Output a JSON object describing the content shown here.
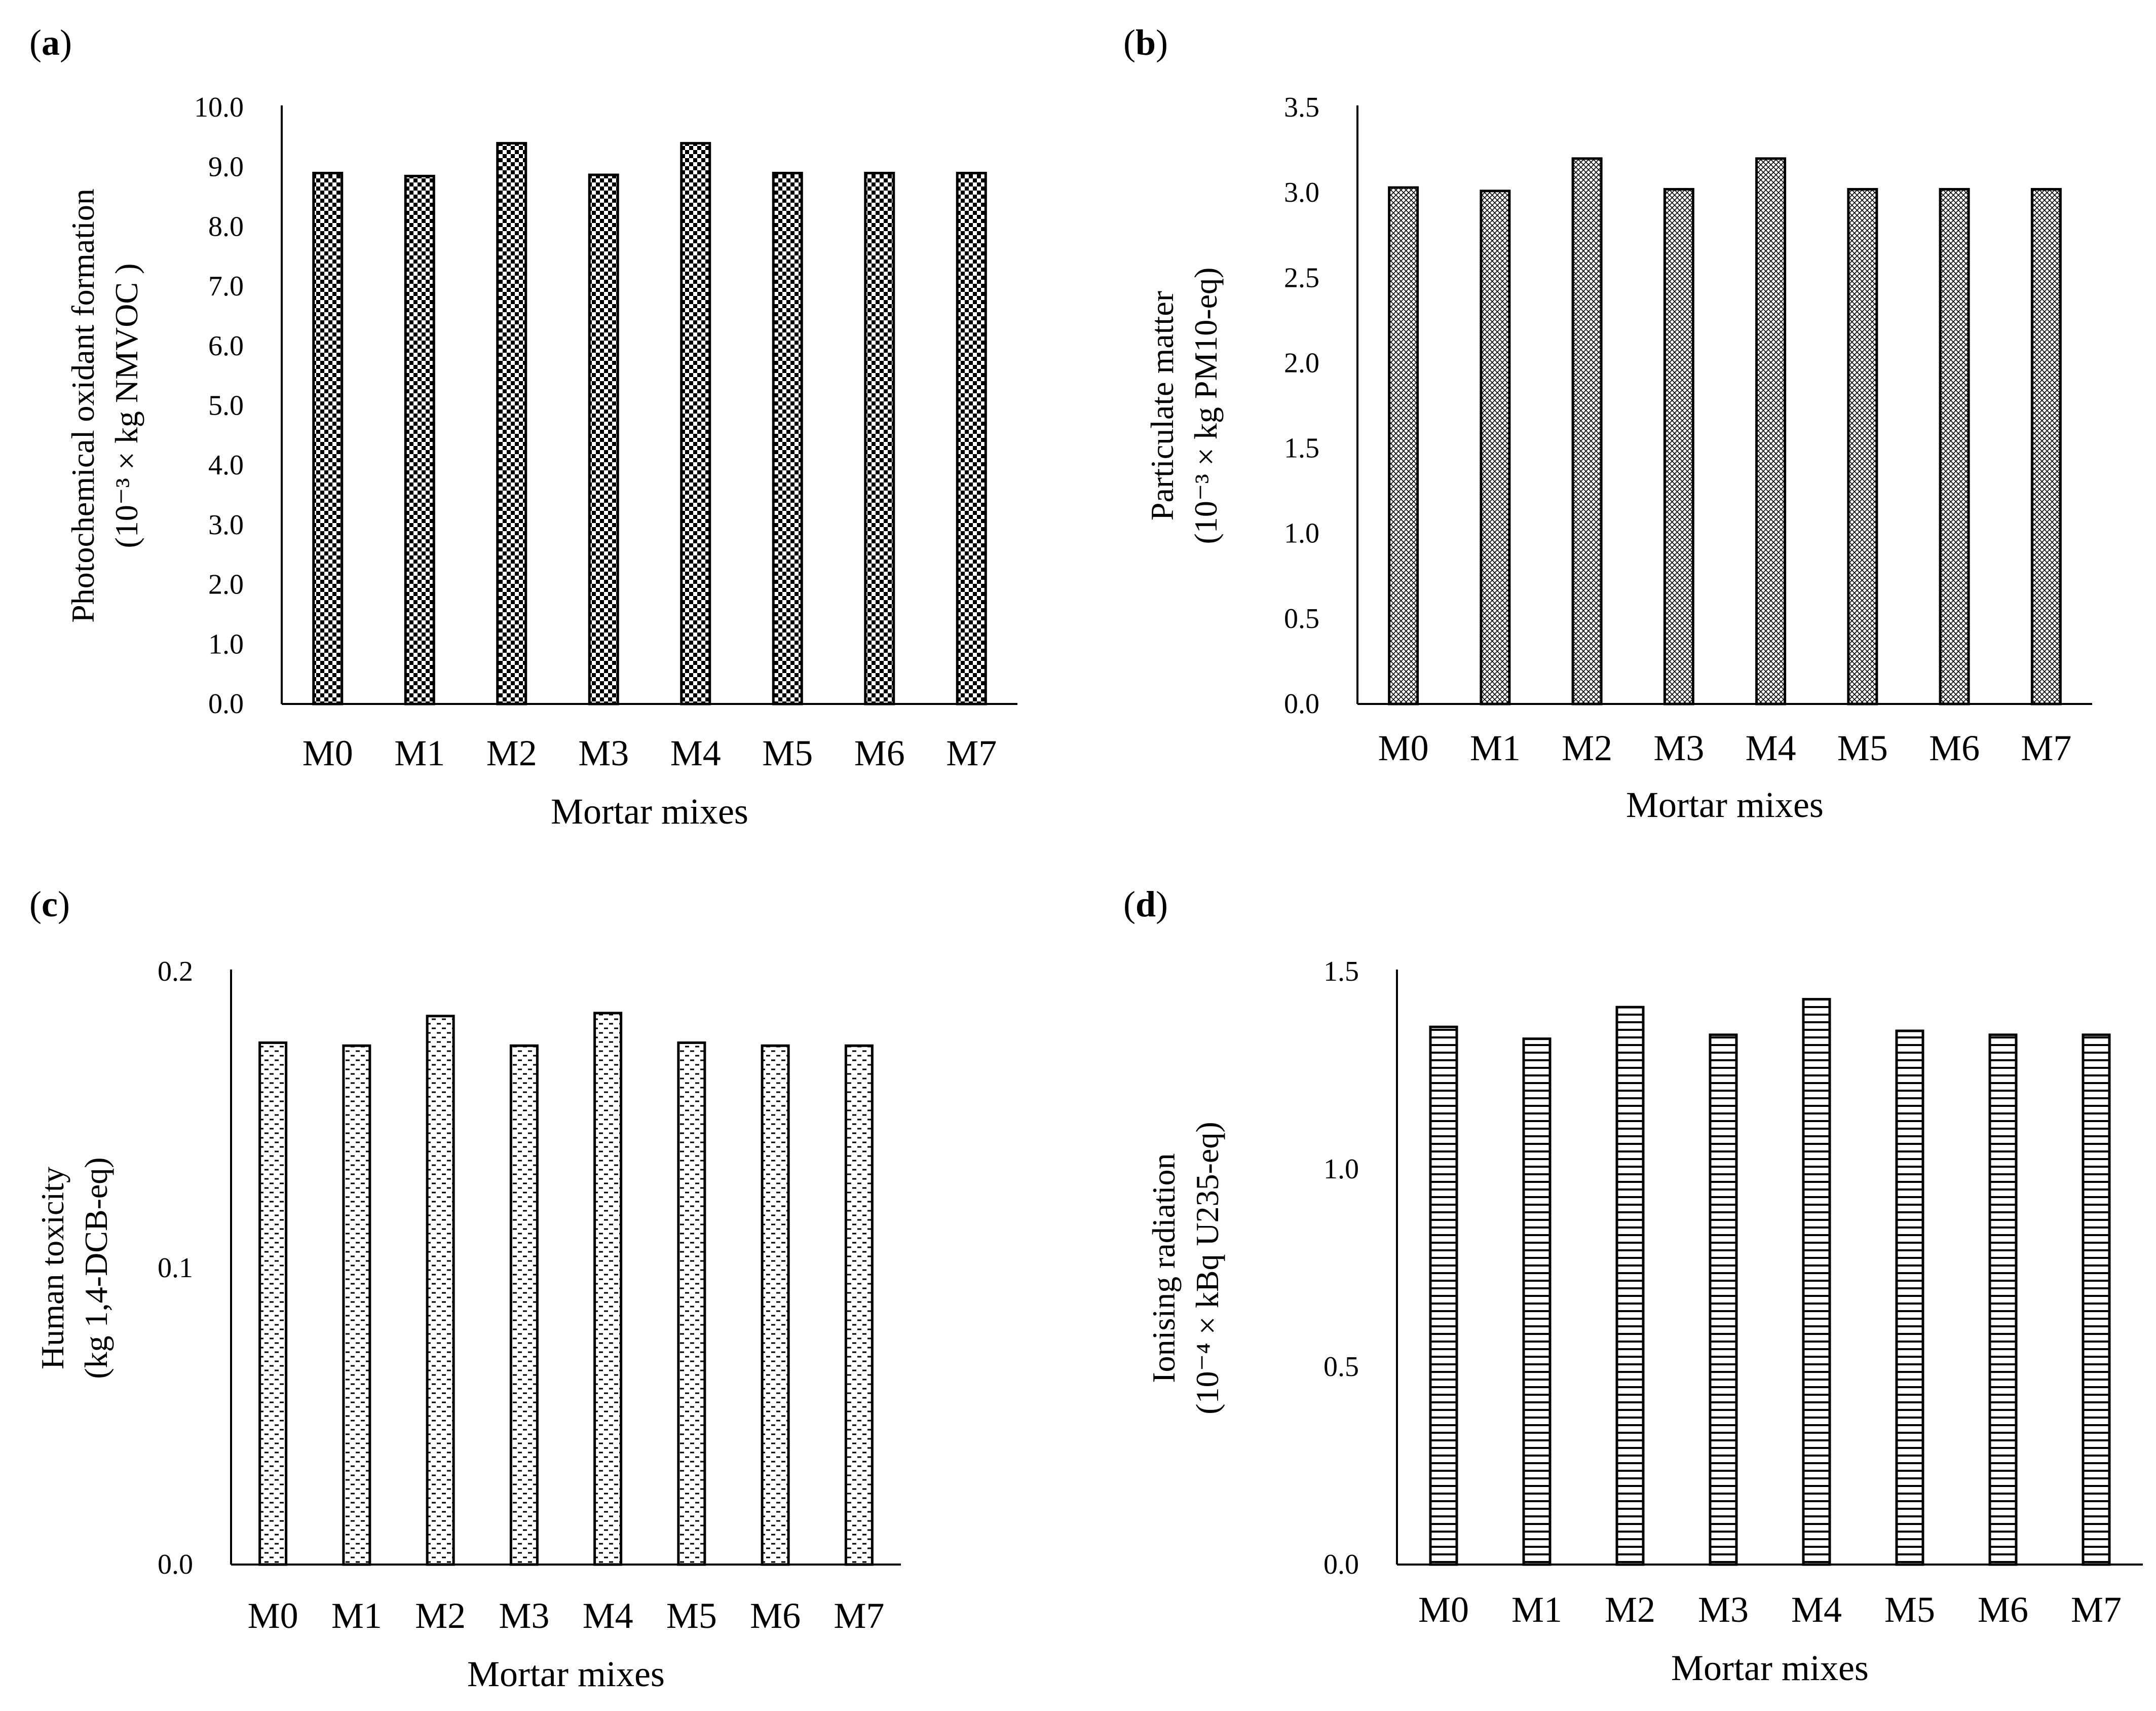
{
  "chart_data": [
    {
      "id": "a",
      "type": "bar",
      "panel_label": "a",
      "title": "",
      "categories": [
        "M0",
        "M1",
        "M2",
        "M3",
        "M4",
        "M5",
        "M6",
        "M7"
      ],
      "values": [
        8.9,
        8.85,
        9.4,
        8.87,
        9.4,
        8.9,
        8.9,
        8.9
      ],
      "ylim": [
        0,
        10
      ],
      "yticks": [
        "0.0",
        "1.0",
        "2.0",
        "3.0",
        "4.0",
        "5.0",
        "6.0",
        "7.0",
        "8.0",
        "9.0",
        "10.0"
      ],
      "xlabel": "Mortar mixes",
      "ylabel": [
        "Photochemical oxidant formation",
        "(10⁻³ × kg NMVOC )"
      ],
      "pattern": "checker",
      "grid": false,
      "legend": "none"
    },
    {
      "id": "b",
      "type": "bar",
      "panel_label": "b",
      "title": "",
      "categories": [
        "M0",
        "M1",
        "M2",
        "M3",
        "M4",
        "M5",
        "M6",
        "M7"
      ],
      "values": [
        3.03,
        3.01,
        3.2,
        3.02,
        3.2,
        3.02,
        3.02,
        3.02
      ],
      "ylim": [
        0,
        3.5
      ],
      "yticks": [
        "0.0",
        "0.5",
        "1.0",
        "1.5",
        "2.0",
        "2.5",
        "3.0",
        "3.5"
      ],
      "xlabel": "Mortar mixes",
      "ylabel": [
        "Particulate matter",
        "(10⁻³ × kg PM10-eq)"
      ],
      "pattern": "crosshatch",
      "grid": false,
      "legend": "none"
    },
    {
      "id": "c",
      "type": "bar",
      "panel_label": "c",
      "title": "",
      "categories": [
        "M0",
        "M1",
        "M2",
        "M3",
        "M4",
        "M5",
        "M6",
        "M7"
      ],
      "values": [
        0.176,
        0.175,
        0.185,
        0.175,
        0.186,
        0.176,
        0.175,
        0.175
      ],
      "ylim": [
        0,
        0.2
      ],
      "yticks": [
        "0.0",
        "0.1",
        "0.2"
      ],
      "xlabel": "Mortar mixes",
      "ylabel": [
        "Human toxicity",
        "(kg 1,4-DCB-eq)"
      ],
      "pattern": "dashes",
      "grid": false,
      "legend": "none"
    },
    {
      "id": "d",
      "type": "bar",
      "panel_label": "d",
      "title": "",
      "categories": [
        "M0",
        "M1",
        "M2",
        "M3",
        "M4",
        "M5",
        "M6",
        "M7"
      ],
      "values": [
        1.36,
        1.33,
        1.41,
        1.34,
        1.43,
        1.35,
        1.34,
        1.34
      ],
      "ylim": [
        0,
        1.5
      ],
      "yticks": [
        "0.0",
        "0.5",
        "1.0",
        "1.5"
      ],
      "xlabel": "Mortar mixes",
      "ylabel": [
        "Ionising radiation",
        "(10⁻⁴ × kBq U235-eq)"
      ],
      "pattern": "hlines",
      "grid": false,
      "legend": "none"
    }
  ]
}
